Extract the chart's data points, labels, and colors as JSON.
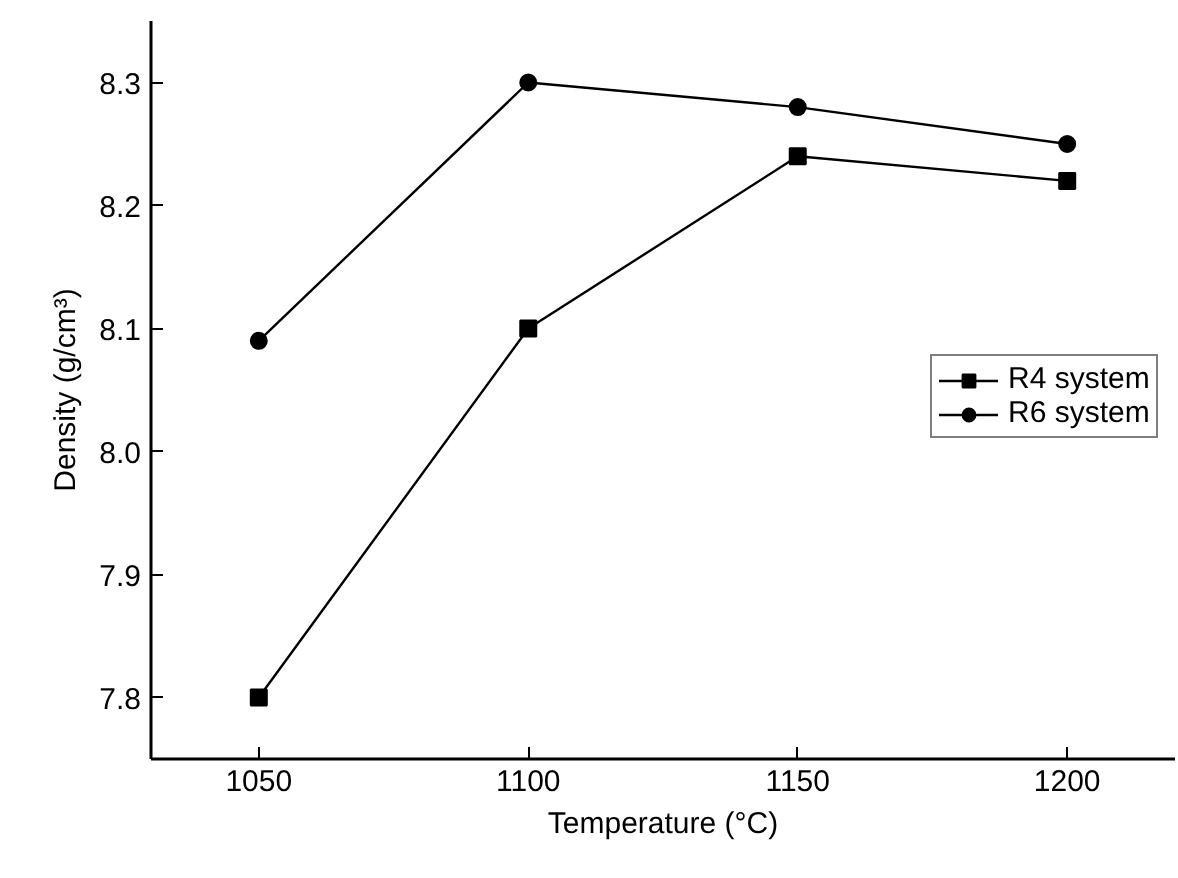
{
  "chart_data": {
    "type": "line",
    "xlabel": "Temperature (°C)",
    "ylabel": "Density (g/cm³)",
    "x": [
      1050,
      1100,
      1150,
      1200
    ],
    "series": [
      {
        "name": "R4 system",
        "color": "#000000",
        "marker": "square",
        "values": [
          7.8,
          8.1,
          8.24,
          8.22
        ]
      },
      {
        "name": "R6 system",
        "color": "#000000",
        "marker": "circle",
        "values": [
          8.09,
          8.3,
          8.28,
          8.25
        ]
      }
    ],
    "xlim": [
      1030,
      1220
    ],
    "xticks": [
      1050,
      1100,
      1150,
      1200
    ],
    "ylim": [
      7.75,
      8.35
    ],
    "yticks": [
      7.8,
      7.9,
      {
        "value": 8,
        "label": "8.0"
      },
      8.1,
      8.2,
      8.3
    ],
    "grid": false,
    "legend": "right",
    "line_style": "solid"
  }
}
